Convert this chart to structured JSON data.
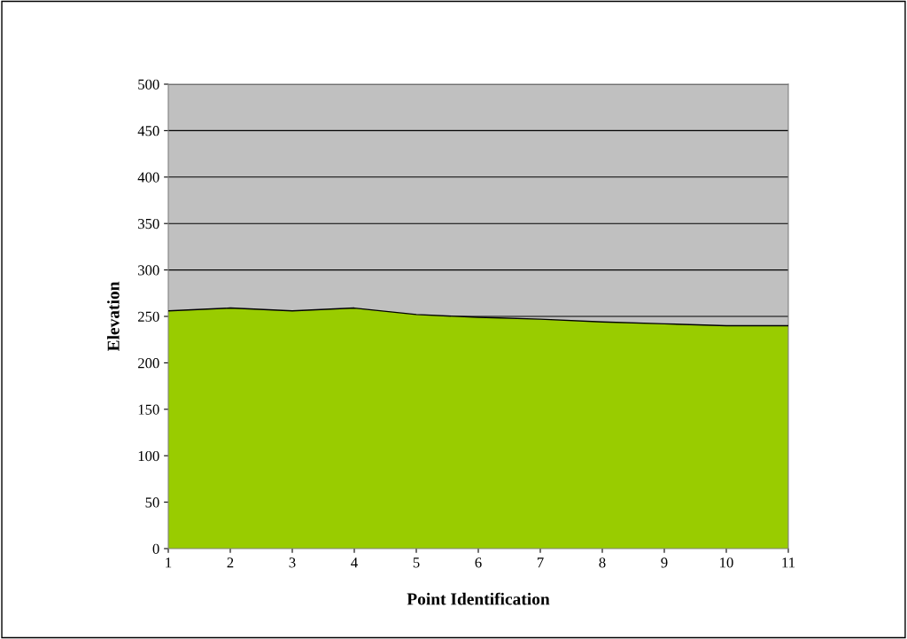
{
  "chart_data": {
    "type": "area",
    "xlabel": "Point Identification",
    "ylabel": "Elevation",
    "x": [
      1,
      2,
      3,
      4,
      5,
      6,
      7,
      8,
      9,
      10,
      11
    ],
    "series": [
      {
        "color": "#99cc00",
        "values": [
          256,
          259,
          256,
          259,
          252,
          249,
          247,
          244,
          242,
          240,
          240
        ]
      }
    ],
    "xlim": [
      1,
      11
    ],
    "xticks": [
      1,
      2,
      3,
      4,
      5,
      6,
      7,
      8,
      9,
      10,
      11
    ],
    "ylim": [
      0,
      500
    ],
    "yticks": [
      0,
      50,
      100,
      150,
      200,
      250,
      300,
      350,
      400,
      450,
      500
    ],
    "grid": "y",
    "legend": false
  }
}
